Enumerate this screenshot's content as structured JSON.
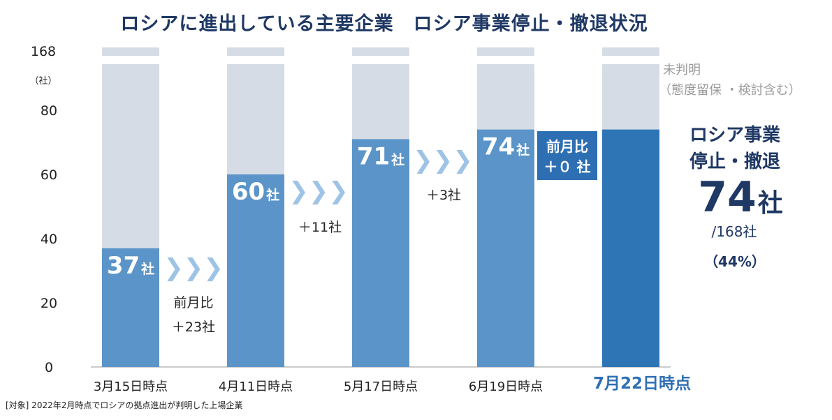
{
  "title": "ロシアに進出している主要企業　ロシア事業停止・撤退状況",
  "footnote": "[対象] 2022年2月時点でロシアの拠点進出が判明した上場企業",
  "colors": {
    "bar": "#5a94c8",
    "bar_highlight": "#2e75b6",
    "remainder": "#d6dce5",
    "arrow": "#9dc3e6",
    "box": "#2e6fb4",
    "title": "#1f3864"
  },
  "chart_data": {
    "type": "bar",
    "stacked": true,
    "categories": [
      "3月15日時点",
      "4月11日時点",
      "5月17日時点",
      "6月19日時点",
      "7月22日時点"
    ],
    "total": 168,
    "values": [
      37,
      60,
      71,
      74,
      74
    ],
    "value_labels": [
      "37",
      "60",
      "71",
      "74",
      ""
    ],
    "value_unit": "社",
    "highlight_index": 4,
    "remainder_label_line1": "未判明",
    "remainder_label_line2": "（態度留保 ・検討含む）",
    "y_axis": {
      "ticks": [
        0,
        20,
        40,
        60,
        80
      ],
      "top_tick": 168,
      "unit": "（社）",
      "break": true
    },
    "changes": [
      {
        "line1": "前月比",
        "line2": "＋23社"
      },
      {
        "line1": "",
        "line2": "＋11社"
      },
      {
        "line1": "",
        "line2": "＋3社"
      },
      {
        "line1": "前月比",
        "line2": "＋０ 社",
        "boxed": true
      }
    ],
    "arrow_glyph": "❯❯❯"
  },
  "summary": {
    "heading_line1": "ロシア事業",
    "heading_line2": "停止・撤退",
    "value": "74",
    "unit": "社",
    "of_total": "/168社",
    "percent": "（44%）"
  }
}
